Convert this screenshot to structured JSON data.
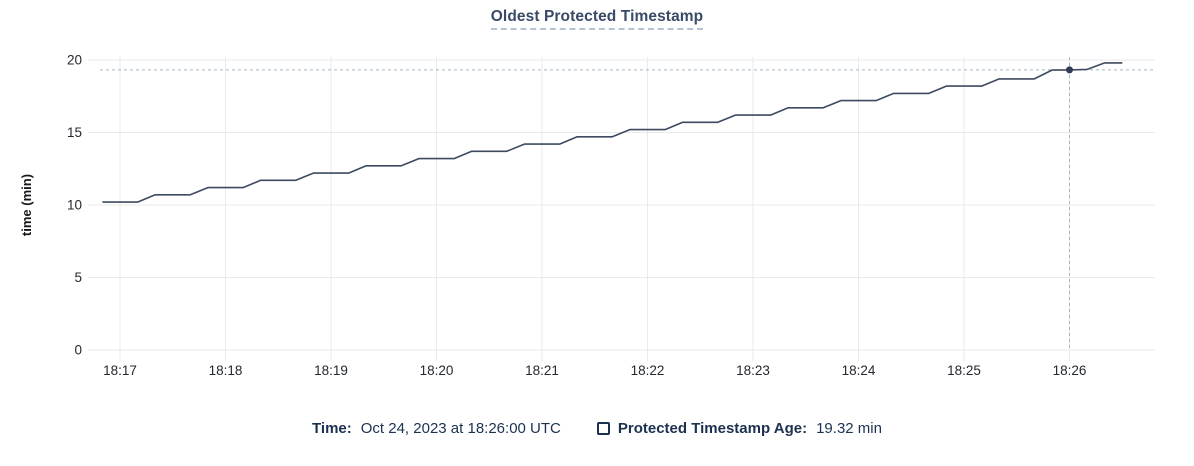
{
  "title": "Oldest Protected Timestamp",
  "legend": {
    "time_label": "Time:",
    "time_value": "Oct 24, 2023 at 18:26:00 UTC",
    "series_label": "Protected Timestamp Age:",
    "series_value": "19.32 min",
    "series_marker": "square-outline"
  },
  "colors": {
    "line": "#3d4a61",
    "dot": "#2e3d55",
    "grid": "#e9eaec",
    "crosshair": "#a3b9c6",
    "title_text": "#394a67",
    "legend_text": "#1c3150",
    "tick_text": "#24282f",
    "background": "#ffffff"
  },
  "chart_data": {
    "type": "line",
    "title": "Oldest Protected Timestamp",
    "xlabel": "",
    "ylabel": "time (min)",
    "ylim": [
      0,
      20
    ],
    "yticks": [
      0,
      5,
      10,
      15,
      20
    ],
    "xticks": [
      "18:17",
      "18:18",
      "18:19",
      "18:20",
      "18:21",
      "18:22",
      "18:23",
      "18:24",
      "18:25",
      "18:26"
    ],
    "grid": true,
    "legend_position": "bottom",
    "series": [
      {
        "name": "Protected Timestamp Age",
        "unit": "min",
        "start_time": "18:16:50",
        "interval_seconds": 10,
        "values": [
          10.2,
          10.2,
          10.2,
          10.7,
          10.7,
          10.7,
          11.2,
          11.2,
          11.2,
          11.7,
          11.7,
          11.7,
          12.2,
          12.2,
          12.2,
          12.7,
          12.7,
          12.7,
          13.2,
          13.2,
          13.2,
          13.7,
          13.7,
          13.7,
          14.2,
          14.2,
          14.2,
          14.7,
          14.7,
          14.7,
          15.2,
          15.2,
          15.2,
          15.7,
          15.7,
          15.7,
          16.2,
          16.2,
          16.2,
          16.7,
          16.7,
          16.7,
          17.2,
          17.2,
          17.2,
          17.7,
          17.7,
          17.7,
          18.2,
          18.2,
          18.2,
          18.7,
          18.7,
          18.7,
          19.3,
          19.32,
          19.35,
          19.8,
          19.8
        ]
      }
    ],
    "crosshair": {
      "date": "Oct 24, 2023",
      "time": "18:26:00",
      "value": 19.32
    }
  }
}
